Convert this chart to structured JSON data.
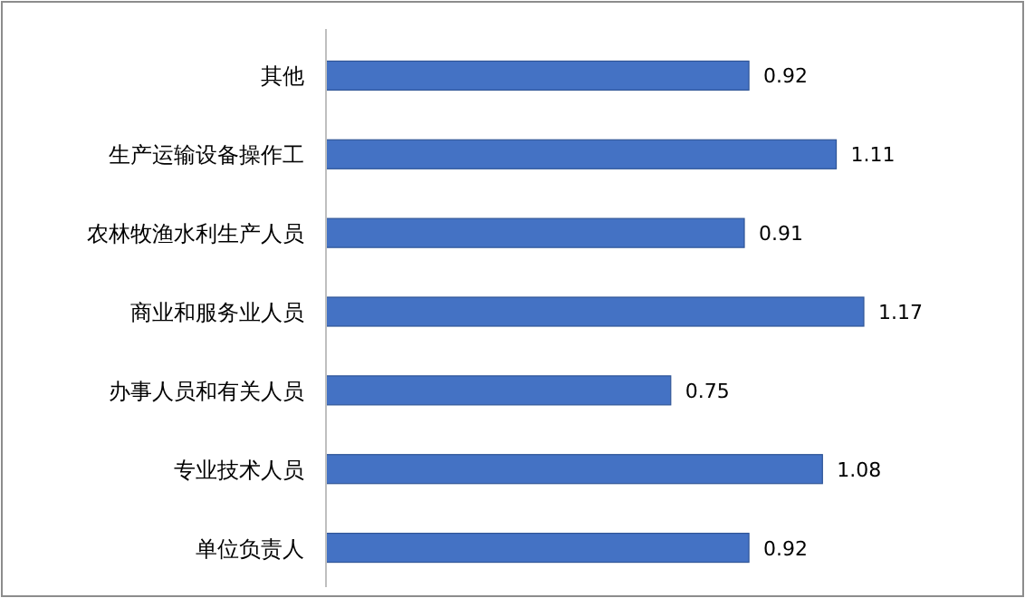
{
  "chart_data": {
    "type": "bar",
    "orientation": "horizontal",
    "categories": [
      "其他",
      "生产运输设备操作工",
      "农林牧渔水利生产人员",
      "商业和服务业人员",
      "办事人员和有关人员",
      "专业技术人员",
      "单位负责人"
    ],
    "values": [
      0.92,
      1.11,
      0.91,
      1.17,
      0.75,
      1.08,
      0.92
    ],
    "color": "#4472c4",
    "data_labels": true
  }
}
